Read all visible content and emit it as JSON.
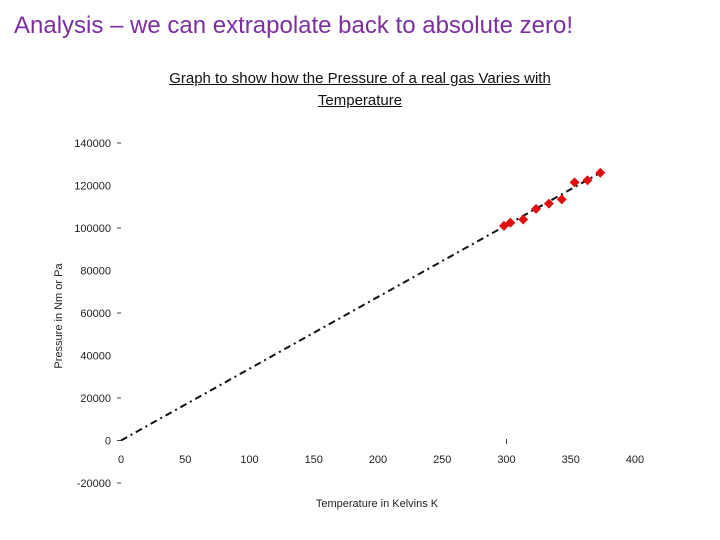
{
  "slide": {
    "title": "Analysis – we can extrapolate back to absolute zero!"
  },
  "chart_data": {
    "type": "scatter",
    "title": "Graph to show how the Pressure of a real gas Varies with",
    "title_line2": "Temperature",
    "xlabel": "Temperature in Kelvins K",
    "ylabel": "Pressure in Nm or Pa",
    "xlim": [
      0,
      400
    ],
    "ylim": [
      -20000,
      140000
    ],
    "x_ticks": [
      "0",
      "50",
      "100",
      "150",
      "200",
      "250",
      "300",
      "350",
      "400"
    ],
    "y_ticks": [
      "-20000",
      "0",
      "20000",
      "40000",
      "60000",
      "80000",
      "100000",
      "120000",
      "140000"
    ],
    "grid": false,
    "legend": "none",
    "marker_color": "#e01010",
    "series": [
      {
        "type": "scatter",
        "x": [
          298,
          303,
          313,
          323,
          333,
          343,
          353,
          363,
          373
        ],
        "y": [
          101000,
          102500,
          104000,
          109000,
          111500,
          113500,
          121500,
          122500,
          126000
        ]
      },
      {
        "type": "line",
        "style": "dashed",
        "x": [
          0,
          373
        ],
        "y": [
          0,
          126000
        ]
      }
    ]
  }
}
